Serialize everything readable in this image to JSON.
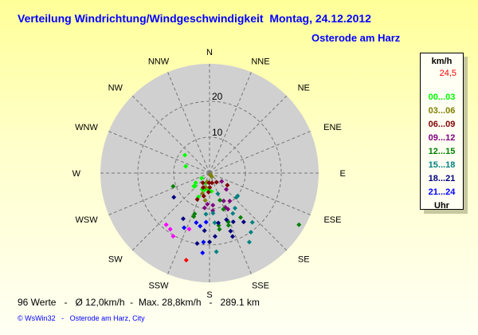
{
  "title": "Verteilung Windrichtung/Windgeschwindigkeit  Montag, 24.12.2012",
  "location": "Osterode am Harz",
  "legend": {
    "unit": "km/h",
    "max_value": "24,5",
    "max_color": "#ff0000",
    "ranges": [
      {
        "label": "00...03",
        "color": "#00ff00"
      },
      {
        "label": "03...06",
        "color": "#808000"
      },
      {
        "label": "06...09",
        "color": "#800000"
      },
      {
        "label": "09...12",
        "color": "#800080"
      },
      {
        "label": "12...15",
        "color": "#008000"
      },
      {
        "label": "15...18",
        "color": "#008080"
      },
      {
        "label": "18...21",
        "color": "#000080"
      },
      {
        "label": "21...24",
        "color": "#0000ff"
      }
    ],
    "footer": "Uhr"
  },
  "stats": "96 Werte   -   Ø 12,0km/h  -  Max. 28,8km/h   -   289.1 km",
  "credit": "© WsWin32   -   Osterode am Harz, City",
  "chart_data": {
    "type": "scatter",
    "subtype": "polar wind rose",
    "directions": [
      "N",
      "NNE",
      "NE",
      "ENE",
      "E",
      "ESE",
      "SE",
      "SSE",
      "S",
      "SSW",
      "SW",
      "WSW",
      "W",
      "WNW",
      "NW",
      "NNW"
    ],
    "radial_ticks": [
      "10",
      "20"
    ],
    "radial_range": [
      0,
      30
    ],
    "grid": true,
    "series": [
      {
        "range": "00...03",
        "color": "#00ff00",
        "points": [
          [
            306,
            8.5
          ],
          [
            286,
            6.9
          ],
          [
            237,
            2.6
          ],
          [
            235,
            4.7
          ],
          [
            230,
            5.7
          ],
          [
            228,
            5.5
          ],
          [
            205,
            7.3
          ],
          [
            204,
            5.0
          ],
          [
            184,
            4.7
          ],
          [
            174,
            5.1
          ],
          [
            197,
            4.9
          ],
          [
            200,
            2.9
          ]
        ]
      },
      {
        "range": "03...06",
        "color": "#808000",
        "points": [
          [
            150,
            0.5
          ],
          [
            150,
            0.9
          ],
          [
            150,
            1.2
          ],
          [
            195,
            2.6
          ],
          [
            195,
            4.1
          ],
          [
            199,
            6.0
          ],
          [
            189,
            7.7
          ]
        ]
      },
      {
        "range": "06...09",
        "color": "#800000",
        "points": [
          [
            183,
            2.7
          ],
          [
            166,
            2.8
          ],
          [
            143,
            3.2
          ],
          [
            204,
            4.4
          ],
          [
            179,
            4.0
          ],
          [
            183,
            5.3
          ],
          [
            205,
            8.1
          ],
          [
            194,
            6.6
          ],
          [
            124,
            6.0
          ],
          [
            214,
            3.3
          ]
        ]
      },
      {
        "range": "09...12",
        "color": "#800080",
        "points": [
          [
            124,
            4.1
          ],
          [
            134,
            6.5
          ],
          [
            153,
            8.7
          ],
          [
            144,
            9.6
          ],
          [
            184,
            8.7
          ],
          [
            174,
            9.0
          ],
          [
            188,
            9.8
          ],
          [
            175,
            10.5
          ],
          [
            155,
            10.6
          ],
          [
            153,
            11.3
          ]
        ]
      },
      {
        "range": "",
        "color": "#ff00ff",
        "points": [
          [
            220,
            18.8
          ],
          [
            215,
            19.1
          ],
          [
            210,
            20.3
          ],
          [
            200,
            16.6
          ]
        ]
      },
      {
        "range": "12...15",
        "color": "#008000",
        "points": [
          [
            250,
            10.8
          ],
          [
            200,
            12.1
          ],
          [
            200,
            12.9
          ],
          [
            159,
            8.1
          ],
          [
            159,
            10.8
          ],
          [
            159,
            14.6
          ],
          [
            160,
            15.5
          ],
          [
            170,
            14.8
          ],
          [
            170,
            15.9
          ],
          [
            145,
            15.1
          ],
          [
            120,
            28.8
          ]
        ]
      },
      {
        "range": "15...18",
        "color": "#008080",
        "points": [
          [
            158,
            6.2
          ],
          [
            129,
            10.1
          ],
          [
            132,
            10.1
          ],
          [
            144,
            12.1
          ],
          [
            150,
            13.0
          ],
          [
            175,
            11.2
          ],
          [
            185,
            11.5
          ],
          [
            174,
            13.9
          ],
          [
            139,
            18.2
          ],
          [
            145,
            20.1
          ],
          [
            150,
            22.2
          ],
          [
            175,
            22.0
          ]
        ]
      },
      {
        "range": "18...21",
        "color": "#000080",
        "points": [
          [
            236,
            12.0
          ],
          [
            210,
            14.7
          ],
          [
            170,
            14.1
          ],
          [
            160,
            13.8
          ],
          [
            154,
            15.1
          ],
          [
            145,
            16.6
          ],
          [
            185,
            16.1
          ],
          [
            160,
            17.2
          ],
          [
            160,
            18.8
          ],
          [
            175,
            17.7
          ],
          [
            180,
            19.2
          ],
          [
            190,
            19.9
          ]
        ]
      },
      {
        "range": "21...24",
        "color": "#0000ff",
        "points": [
          [
            195,
            14.3
          ],
          [
            190,
            15.0
          ],
          [
            184,
            13.7
          ],
          [
            205,
            16.8
          ],
          [
            185,
            19.3
          ],
          [
            185,
            22.3
          ]
        ]
      },
      {
        "range": "24,5",
        "color": "#ff0000",
        "points": [
          [
            195,
            25.1
          ]
        ]
      }
    ]
  }
}
